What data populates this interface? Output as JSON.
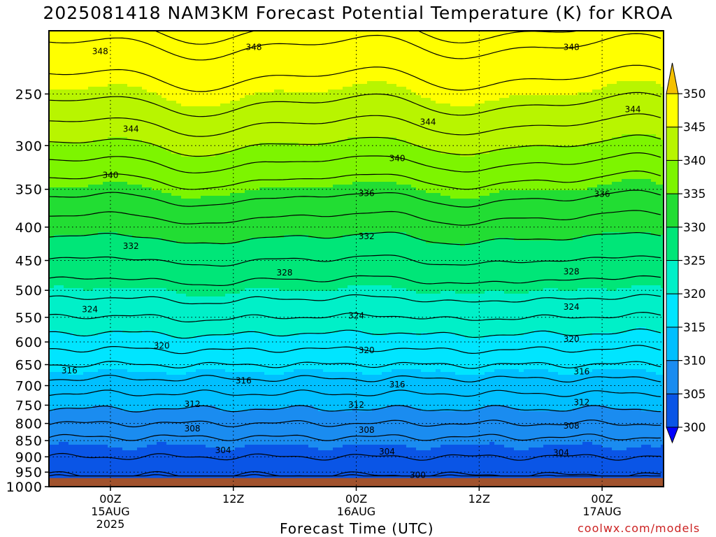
{
  "title": "2025081418 NAM3KM Forecast Potential Temperature (K) for KROA",
  "footer": {
    "xlabel": "Forecast Time (UTC)",
    "credit": "coolwx.com/models"
  },
  "chart_data": {
    "type": "heatmap",
    "title": "2025081418 NAM3KM Forecast Potential Temperature (K) for KROA",
    "xlabel": "Forecast Time (UTC)",
    "ylabel": "",
    "x_range_hours_from_init": [
      0,
      60
    ],
    "y_range_hPa": [
      1000,
      200
    ],
    "y_scale": "log-pressure",
    "grid": true,
    "x_ticks": [
      {
        "hour": 6,
        "lines": [
          "00Z",
          "15AUG",
          "2025"
        ]
      },
      {
        "hour": 18,
        "lines": [
          "12Z"
        ]
      },
      {
        "hour": 30,
        "lines": [
          "00Z",
          "16AUG"
        ]
      },
      {
        "hour": 42,
        "lines": [
          "12Z"
        ]
      },
      {
        "hour": 54,
        "lines": [
          "00Z",
          "17AUG"
        ]
      }
    ],
    "y_ticks": [
      250,
      300,
      350,
      400,
      450,
      500,
      550,
      600,
      650,
      700,
      750,
      800,
      850,
      900,
      950,
      1000
    ],
    "colorbar": {
      "levels": [
        300,
        305,
        310,
        315,
        320,
        325,
        330,
        335,
        340,
        345,
        350
      ],
      "colors": [
        "#0000ff",
        "#0a55e6",
        "#1a8cf0",
        "#00bfff",
        "#00e5ff",
        "#00f0c8",
        "#00e678",
        "#22dd33",
        "#7df500",
        "#b8f500",
        "#ffff00",
        "#f5c000"
      ],
      "extend": "both"
    },
    "contour_interval_K": 2,
    "ground_color": "#a0522d",
    "surface_pressure_hPa": 970,
    "profile": [
      {
        "p": 970,
        "theta": 301.5
      },
      {
        "p": 950,
        "theta": 302.5
      },
      {
        "p": 900,
        "theta": 304
      },
      {
        "p": 850,
        "theta": 305.5
      },
      {
        "p": 800,
        "theta": 308
      },
      {
        "p": 750,
        "theta": 310.5
      },
      {
        "p": 700,
        "theta": 313
      },
      {
        "p": 650,
        "theta": 316
      },
      {
        "p": 600,
        "theta": 319
      },
      {
        "p": 550,
        "theta": 322
      },
      {
        "p": 500,
        "theta": 325
      },
      {
        "p": 450,
        "theta": 328
      },
      {
        "p": 400,
        "theta": 331
      },
      {
        "p": 350,
        "theta": 335
      },
      {
        "p": 300,
        "theta": 340
      },
      {
        "p": 250,
        "theta": 345
      },
      {
        "p": 200,
        "theta": 349
      }
    ],
    "contour_labels": [
      {
        "v": 348,
        "hour": 5,
        "p": 215
      },
      {
        "v": 348,
        "hour": 20,
        "p": 212
      },
      {
        "v": 348,
        "hour": 51,
        "p": 212
      },
      {
        "v": 344,
        "hour": 8,
        "p": 283
      },
      {
        "v": 344,
        "hour": 37,
        "p": 276
      },
      {
        "v": 344,
        "hour": 57,
        "p": 264
      },
      {
        "v": 340,
        "hour": 6,
        "p": 333
      },
      {
        "v": 340,
        "hour": 34,
        "p": 314
      },
      {
        "v": 336,
        "hour": 31,
        "p": 355
      },
      {
        "v": 336,
        "hour": 54,
        "p": 356
      },
      {
        "v": 332,
        "hour": 8,
        "p": 428
      },
      {
        "v": 332,
        "hour": 31,
        "p": 413
      },
      {
        "v": 328,
        "hour": 23,
        "p": 470
      },
      {
        "v": 328,
        "hour": 51,
        "p": 468
      },
      {
        "v": 324,
        "hour": 4,
        "p": 535
      },
      {
        "v": 324,
        "hour": 30,
        "p": 547
      },
      {
        "v": 324,
        "hour": 51,
        "p": 530
      },
      {
        "v": 320,
        "hour": 11,
        "p": 608
      },
      {
        "v": 320,
        "hour": 31,
        "p": 618
      },
      {
        "v": 320,
        "hour": 51,
        "p": 594
      },
      {
        "v": 316,
        "hour": 2,
        "p": 664
      },
      {
        "v": 316,
        "hour": 19,
        "p": 688
      },
      {
        "v": 316,
        "hour": 34,
        "p": 697
      },
      {
        "v": 316,
        "hour": 52,
        "p": 666
      },
      {
        "v": 312,
        "hour": 14,
        "p": 747
      },
      {
        "v": 312,
        "hour": 30,
        "p": 749
      },
      {
        "v": 312,
        "hour": 52,
        "p": 743
      },
      {
        "v": 308,
        "hour": 14,
        "p": 815
      },
      {
        "v": 308,
        "hour": 31,
        "p": 819
      },
      {
        "v": 308,
        "hour": 51,
        "p": 807
      },
      {
        "v": 304,
        "hour": 17,
        "p": 880
      },
      {
        "v": 304,
        "hour": 33,
        "p": 884
      },
      {
        "v": 304,
        "hour": 50,
        "p": 887
      },
      {
        "v": 300,
        "hour": 36,
        "p": 960
      }
    ]
  }
}
